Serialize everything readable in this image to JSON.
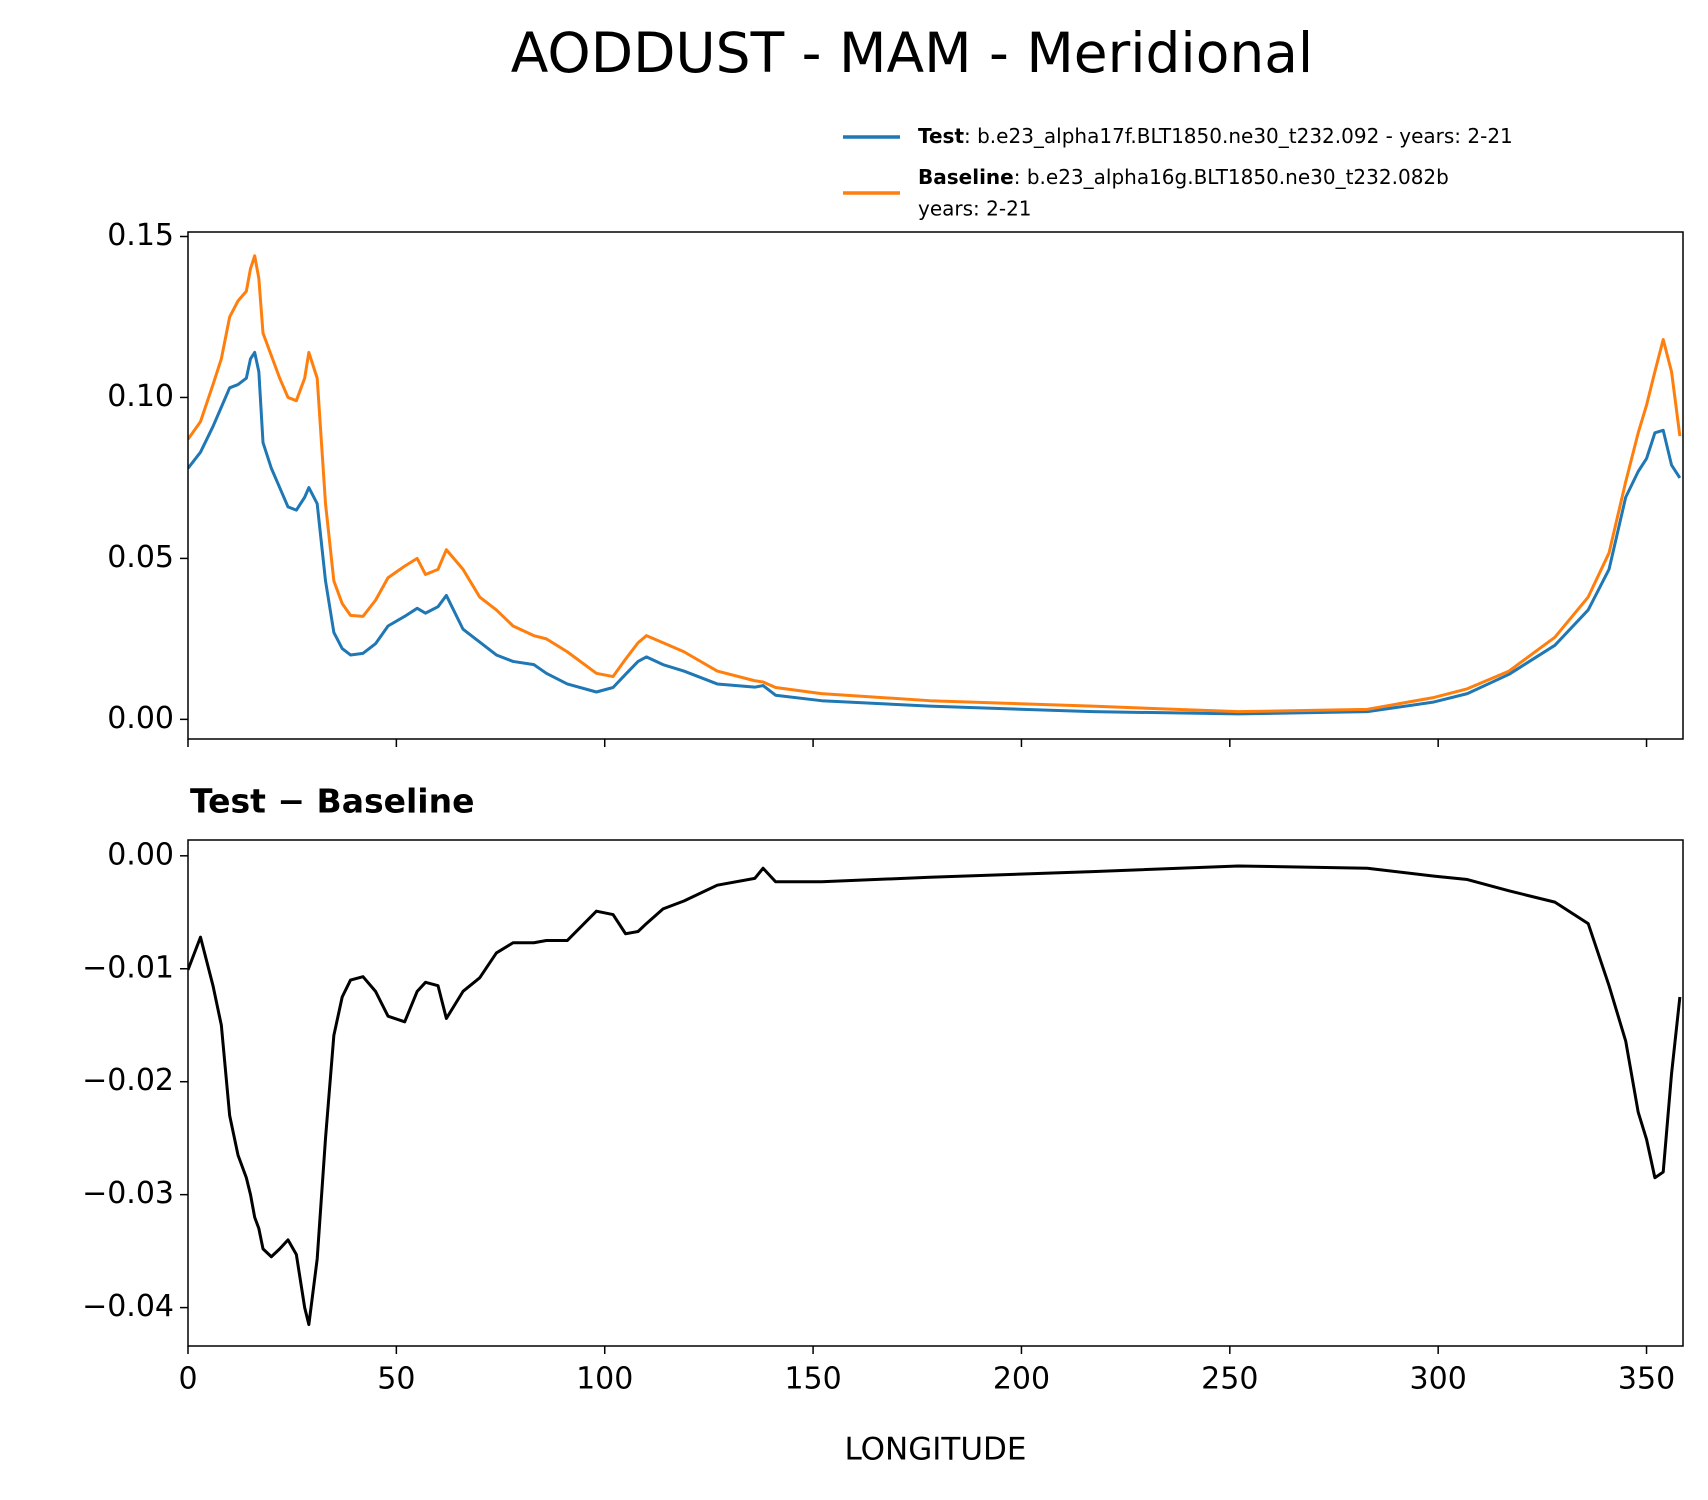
{
  "title": "AODDUST - MAM - Meridional",
  "chart_data": [
    {
      "type": "line",
      "x": [
        0,
        3,
        6,
        8,
        10,
        12,
        14,
        15,
        16,
        17,
        18,
        20,
        22,
        24,
        26,
        28,
        29,
        31,
        33,
        35,
        37,
        39,
        42,
        45,
        48,
        52,
        55,
        57,
        60,
        62,
        66,
        70,
        74,
        78,
        83,
        86,
        91,
        98,
        102,
        105,
        108,
        110,
        114,
        119,
        127,
        136,
        138,
        141,
        152,
        178,
        217,
        252,
        283,
        299,
        307,
        317,
        328,
        336,
        341,
        345,
        348,
        350,
        352,
        354,
        356,
        358
      ],
      "series": [
        {
          "name": "Test",
          "label": [
            ": b.e23_alpha17f.BLT1850.ne30_t232.092 - years: 2-21"
          ],
          "color": "#1f77b4",
          "values": [
            0.078,
            0.083,
            0.091,
            0.097,
            0.103,
            0.104,
            0.106,
            0.112,
            0.114,
            0.108,
            0.086,
            0.078,
            0.072,
            0.066,
            0.065,
            0.069,
            0.072,
            0.067,
            0.043,
            0.027,
            0.022,
            0.02,
            0.0205,
            0.0235,
            0.029,
            0.032,
            0.0345,
            0.033,
            0.035,
            0.0385,
            0.028,
            0.024,
            0.02,
            0.018,
            0.017,
            0.0143,
            0.011,
            0.0085,
            0.0099,
            0.014,
            0.018,
            0.0194,
            0.017,
            0.015,
            0.011,
            0.01,
            0.0105,
            0.0075,
            0.0058,
            0.0041,
            0.0024,
            0.0017,
            0.0024,
            0.0054,
            0.008,
            0.014,
            0.023,
            0.034,
            0.0466,
            0.069,
            0.077,
            0.081,
            0.089,
            0.0898,
            0.079,
            0.075
          ]
        },
        {
          "name": "Baseline",
          "label": [
            ": b.e23_alpha16g.BLT1850.ne30_t232.082b",
            "years: 2-21"
          ],
          "color": "#ff7f0e",
          "values": [
            0.087,
            0.0925,
            0.104,
            0.112,
            0.125,
            0.13,
            0.133,
            0.14,
            0.144,
            0.137,
            0.12,
            0.113,
            0.106,
            0.1,
            0.099,
            0.106,
            0.114,
            0.106,
            0.067,
            0.043,
            0.036,
            0.0323,
            0.032,
            0.037,
            0.044,
            0.0476,
            0.05,
            0.045,
            0.0466,
            0.0527,
            0.0466,
            0.038,
            0.034,
            0.029,
            0.026,
            0.025,
            0.021,
            0.0143,
            0.0133,
            0.0187,
            0.0238,
            0.026,
            0.0238,
            0.021,
            0.015,
            0.012,
            0.0116,
            0.0099,
            0.008,
            0.0058,
            0.0041,
            0.0024,
            0.0031,
            0.0068,
            0.0095,
            0.015,
            0.0255,
            0.038,
            0.0517,
            0.0738,
            0.089,
            0.0976,
            0.108,
            0.118,
            0.108,
            0.088
          ]
        }
      ],
      "xlim": [
        0,
        358.75
      ],
      "ylim": [
        -0.0061,
        0.1514
      ],
      "xticks": [
        0,
        50,
        100,
        150,
        200,
        250,
        300,
        350
      ],
      "show_xticklabels": false,
      "yticks": [
        {
          "value": 0,
          "label": "0.00"
        },
        0.05,
        {
          "value": 0.1,
          "label": "0.10"
        },
        0.15
      ]
    },
    {
      "type": "line",
      "title": "Test − Baseline",
      "xlabel": "LONGITUDE",
      "x": [
        0,
        3,
        6,
        8,
        10,
        12,
        14,
        15,
        16,
        17,
        18,
        20,
        22,
        24,
        26,
        28,
        29,
        31,
        33,
        35,
        37,
        39,
        42,
        45,
        48,
        52,
        55,
        57,
        60,
        62,
        66,
        70,
        74,
        78,
        83,
        86,
        91,
        98,
        102,
        105,
        108,
        110,
        114,
        119,
        127,
        136,
        138,
        141,
        152,
        178,
        217,
        252,
        283,
        299,
        307,
        317,
        328,
        336,
        341,
        345,
        348,
        350,
        352,
        354,
        356,
        358
      ],
      "series": [
        {
          "color": "#000000",
          "values": [
            -0.0101,
            -0.0072,
            -0.0115,
            -0.015,
            -0.023,
            -0.0265,
            -0.0285,
            -0.03,
            -0.032,
            -0.033,
            -0.0348,
            -0.0355,
            -0.0348,
            -0.034,
            -0.0353,
            -0.04,
            -0.0415,
            -0.0357,
            -0.025,
            -0.0159,
            -0.0125,
            -0.011,
            -0.0107,
            -0.012,
            -0.0142,
            -0.0147,
            -0.012,
            -0.0112,
            -0.0115,
            -0.0144,
            -0.012,
            -0.0108,
            -0.0086,
            -0.0077,
            -0.0077,
            -0.0075,
            -0.0075,
            -0.0049,
            -0.0052,
            -0.0069,
            -0.0067,
            -0.006,
            -0.0047,
            -0.004,
            -0.0026,
            -0.002,
            -0.0011,
            -0.0023,
            -0.0023,
            -0.0019,
            -0.0014,
            -0.0009,
            -0.0011,
            -0.0018,
            -0.0021,
            -0.0031,
            -0.0041,
            -0.006,
            -0.0115,
            -0.0164,
            -0.0227,
            -0.0251,
            -0.0285,
            -0.028,
            -0.0193,
            -0.0125
          ]
        }
      ],
      "xlim": [
        0,
        358.75
      ],
      "ylim": [
        -0.0434,
        0.0014
      ],
      "xticks": [
        0,
        50,
        100,
        150,
        200,
        250,
        300,
        350
      ],
      "show_xticklabels": true,
      "yticks": [
        {
          "value": -0.04,
          "label": "−0.04"
        },
        {
          "value": -0.03,
          "label": "−0.03"
        },
        {
          "value": -0.02,
          "label": "−0.02"
        },
        {
          "value": -0.01,
          "label": "−0.01"
        },
        {
          "value": 0,
          "label": "0.00"
        }
      ]
    }
  ]
}
